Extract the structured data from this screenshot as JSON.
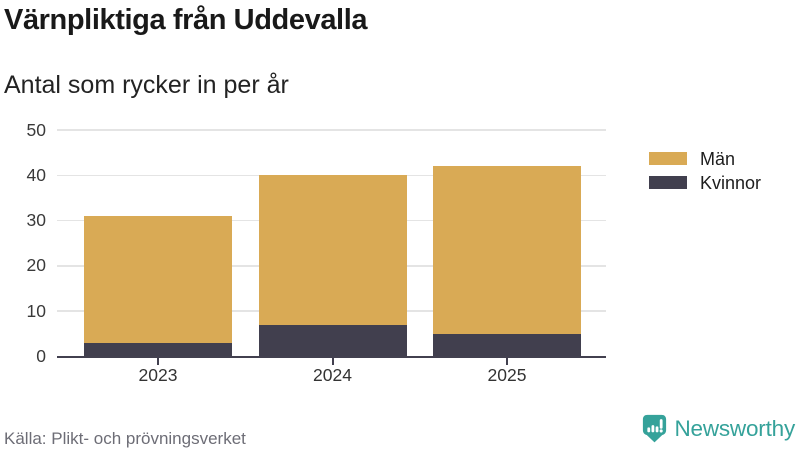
{
  "header": {
    "title": "Värnpliktiga från Uddevalla",
    "subtitle": "Antal som rycker in per år"
  },
  "chart_data": {
    "type": "bar",
    "stacked": true,
    "title": "Värnpliktiga från Uddevalla",
    "subtitle": "Antal som rycker in per år",
    "categories": [
      "2023",
      "2024",
      "2025"
    ],
    "series": [
      {
        "name": "Män",
        "color": "#d9aa55",
        "values": [
          28,
          33,
          37
        ]
      },
      {
        "name": "Kvinnor",
        "color": "#413f4e",
        "values": [
          3,
          7,
          5
        ]
      }
    ],
    "stack_order": [
      "Kvinnor",
      "Män"
    ],
    "stacked_totals": [
      31,
      40,
      42
    ],
    "ylim": [
      0,
      50
    ],
    "yticks": [
      0,
      10,
      20,
      30,
      40,
      50
    ],
    "grid": true,
    "legend_position": "right"
  },
  "footer": {
    "source": "Källa: Plikt- och prövningsverket",
    "brand": "Newsworthy",
    "brand_color": "#35a29a"
  },
  "style": {
    "axis_color": "#42404f",
    "grid_color": "#e4e4e4",
    "muted_text_color": "#6d6d76"
  }
}
